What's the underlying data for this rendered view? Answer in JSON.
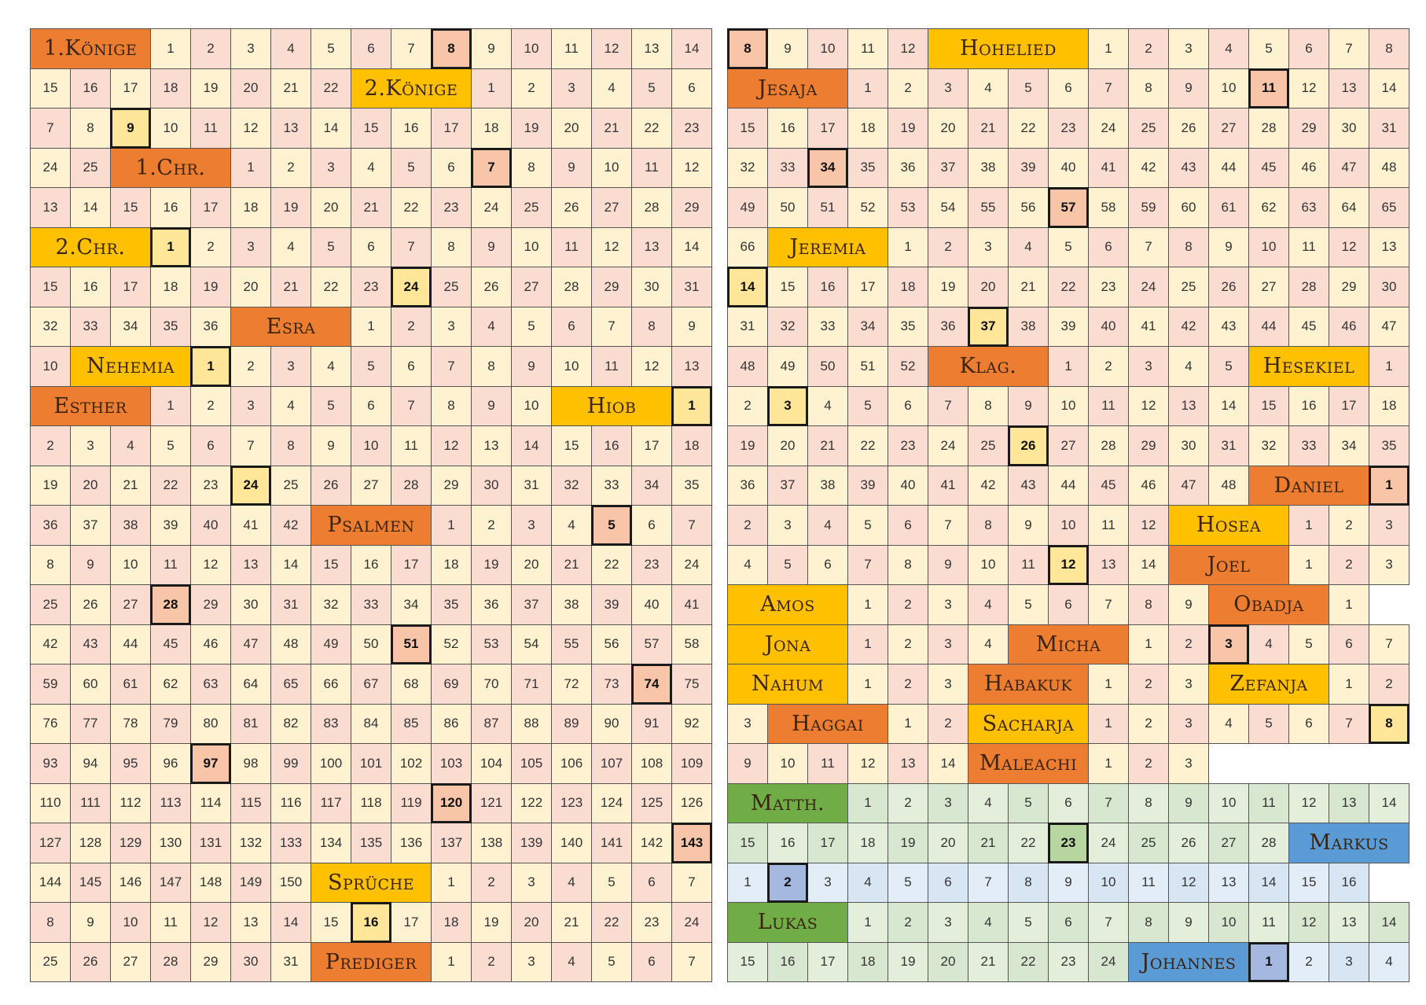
{
  "colors": {
    "ot_a": "#fbdcd0",
    "ot_b": "#fff2d0",
    "gospel_a": "#d8e8d0",
    "gospel_b": "#d8e6f4",
    "book_orange": "#ed7d31",
    "book_gold": "#ffc000",
    "book_green": "#70ad47",
    "book_blue": "#5b9bd5",
    "mark_orange": "#f8c5a8",
    "mark_gold": "#ffe699",
    "mark_green": "#b8d6a0",
    "mark_blue": "#a4b8e0"
  },
  "books": {
    "koenige1": "1.Könige",
    "koenige2": "2.Könige",
    "chr1": "1.Chr.",
    "chr2": "2.Chr.",
    "esra": "Esra",
    "nehemia": "Nehemia",
    "esther": "Esther",
    "hiob": "Hiob",
    "psalmen": "Psalmen",
    "sprueche": "Sprüche",
    "prediger": "Prediger",
    "hohelied": "Hohelied",
    "jesaja": "Jesaja",
    "jeremia": "Jeremia",
    "klag": "Klag.",
    "hesekiel": "Hesekiel",
    "daniel": "Daniel",
    "hosea": "Hosea",
    "joel": "Joel",
    "amos": "Amos",
    "obadja": "Obadja",
    "jona": "Jona",
    "micha": "Micha",
    "nahum": "Nahum",
    "habakuk": "Habakuk",
    "zefanja": "Zefanja",
    "haggai": "Haggai",
    "sacharja": "Sacharja",
    "maleachi": "Maleachi",
    "matth": "Matth.",
    "markus": "Markus",
    "lukas": "Lukas",
    "johannes": "Johannes"
  },
  "left_page": [
    {
      "book": "koenige1",
      "chapters": 22,
      "bg": "book_orange",
      "width": 3,
      "marks": [
        8
      ]
    },
    {
      "book": "koenige2",
      "chapters": 25,
      "bg": "book_gold",
      "width": 3,
      "marks": [
        9
      ]
    },
    {
      "book": "chr1",
      "chapters": 29,
      "bg": "book_orange",
      "width": 3,
      "marks": [
        7
      ]
    },
    {
      "book": "chr2",
      "chapters": 36,
      "bg": "book_gold",
      "width": 3,
      "marks": [
        1,
        24
      ]
    },
    {
      "book": "esra",
      "chapters": 10,
      "bg": "book_orange",
      "width": 3
    },
    {
      "book": "nehemia",
      "chapters": 13,
      "bg": "book_gold",
      "width": 3,
      "marks": [
        1
      ]
    },
    {
      "book": "esther",
      "chapters": 10,
      "bg": "book_orange",
      "width": 3
    },
    {
      "book": "hiob",
      "chapters": 42,
      "bg": "book_gold",
      "width": 3,
      "marks": [
        1,
        24
      ]
    },
    {
      "book": "psalmen",
      "chapters": 150,
      "bg": "book_orange",
      "width": 3,
      "marks": [
        5,
        28,
        51,
        74,
        97,
        120,
        143
      ]
    },
    {
      "book": "sprueche",
      "chapters": 31,
      "bg": "book_gold",
      "width": 3,
      "marks": [
        16
      ]
    },
    {
      "book": "prediger",
      "chapters": 7,
      "bg": "book_orange",
      "width": 3
    }
  ],
  "right_page": [
    {
      "book": "hohelied",
      "from": 8,
      "chapters": 8,
      "first_mark": 8,
      "bg": "book_gold",
      "width": 4
    },
    {
      "book": "jesaja",
      "chapters": 66,
      "bg": "book_orange",
      "width": 3,
      "marks": [
        11,
        34,
        57
      ]
    },
    {
      "book": "jeremia",
      "chapters": 52,
      "bg": "book_gold",
      "width": 3,
      "marks": [
        14,
        37
      ]
    },
    {
      "book": "klag",
      "chapters": 5,
      "bg": "book_orange",
      "width": 3
    },
    {
      "book": "hesekiel",
      "chapters": 48,
      "bg": "book_gold",
      "width": 3,
      "marks": [
        3,
        26
      ]
    },
    {
      "book": "daniel",
      "chapters": 12,
      "bg": "book_orange",
      "width": 3,
      "marks": [
        1
      ]
    },
    {
      "book": "hosea",
      "chapters": 14,
      "bg": "book_gold",
      "width": 3,
      "marks": [
        12
      ]
    },
    {
      "book": "joel",
      "chapters": 3,
      "bg": "book_orange",
      "width": 3
    },
    {
      "book": "amos",
      "chapters": 9,
      "bg": "book_gold",
      "width": 3
    },
    {
      "book": "obadja",
      "chapters": 1,
      "bg": "book_orange",
      "width": 3
    },
    {
      "book": "jona",
      "chapters": 4,
      "bg": "book_gold",
      "width": 3
    },
    {
      "book": "micha",
      "chapters": 7,
      "bg": "book_orange",
      "width": 3,
      "marks": [
        3
      ]
    },
    {
      "book": "nahum",
      "chapters": 3,
      "bg": "book_gold",
      "width": 3
    },
    {
      "book": "habakuk",
      "chapters": 3,
      "bg": "book_orange",
      "width": 3
    },
    {
      "book": "zefanja",
      "chapters": 3,
      "bg": "book_gold",
      "width": 3
    },
    {
      "book": "haggai",
      "chapters": 2,
      "bg": "book_orange",
      "width": 3
    },
    {
      "book": "sacharja",
      "chapters": 14,
      "bg": "book_gold",
      "width": 3,
      "marks": [
        8
      ]
    },
    {
      "book": "maleachi",
      "chapters": 3,
      "bg": "book_orange",
      "width": 3
    },
    {
      "book": "matth",
      "chapters": 28,
      "bg": "book_green",
      "width": 3,
      "marks": [
        23
      ],
      "newline": true
    },
    {
      "book": "markus",
      "chapters": 16,
      "bg": "book_blue",
      "width": 3,
      "marks": [
        2
      ]
    },
    {
      "book": "lukas",
      "chapters": 24,
      "bg": "book_green",
      "width": 3,
      "newline": true
    },
    {
      "book": "johannes",
      "chapters": 4,
      "bg": "book_blue",
      "width": 3,
      "marks": [
        1
      ]
    }
  ]
}
